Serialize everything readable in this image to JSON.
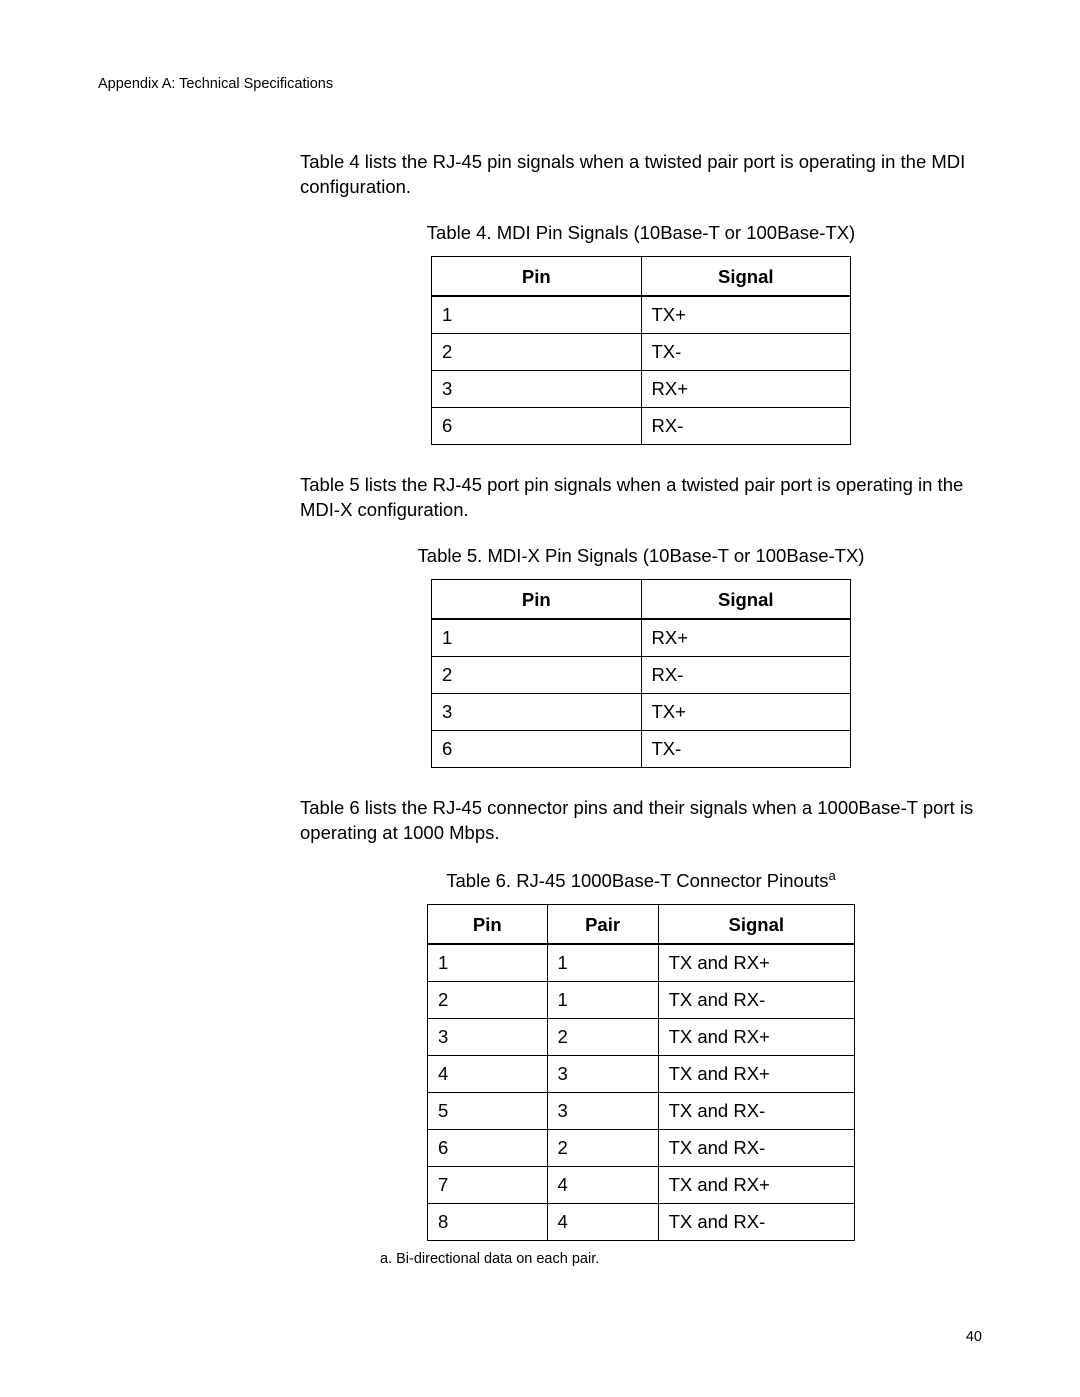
{
  "header": "Appendix A: Technical Specifications",
  "para1": "Table 4 lists the RJ-45 pin signals when a twisted pair port is operating in the MDI configuration.",
  "table4": {
    "caption": "Table 4. MDI Pin Signals (10Base-T or 100Base-TX)",
    "columns": [
      "Pin",
      "Signal"
    ],
    "rows": [
      [
        "1",
        "TX+"
      ],
      [
        "2",
        "TX-"
      ],
      [
        "3",
        "RX+"
      ],
      [
        "6",
        "RX-"
      ]
    ]
  },
  "para2": "Table 5 lists the RJ-45 port pin signals when a twisted pair port is operating in the MDI-X configuration.",
  "table5": {
    "caption": "Table 5. MDI-X Pin Signals (10Base-T or 100Base-TX)",
    "columns": [
      "Pin",
      "Signal"
    ],
    "rows": [
      [
        "1",
        "RX+"
      ],
      [
        "2",
        "RX-"
      ],
      [
        "3",
        "TX+"
      ],
      [
        "6",
        "TX-"
      ]
    ]
  },
  "para3": "Table 6 lists the RJ-45 connector pins and their signals when a 1000Base-T port is operating at 1000 Mbps.",
  "table6": {
    "caption_pre": "Table 6. RJ-45 1000Base-T Connector Pinouts",
    "caption_sup": "a",
    "columns": [
      "Pin",
      "Pair",
      "Signal"
    ],
    "rows": [
      [
        "1",
        "1",
        "TX and RX+"
      ],
      [
        "2",
        "1",
        "TX and RX-"
      ],
      [
        "3",
        "2",
        "TX and RX+"
      ],
      [
        "4",
        "3",
        "TX and RX+"
      ],
      [
        "5",
        "3",
        "TX and RX-"
      ],
      [
        "6",
        "2",
        "TX and RX-"
      ],
      [
        "7",
        "4",
        "TX and RX+"
      ],
      [
        "8",
        "4",
        "TX and RX-"
      ]
    ]
  },
  "footnote": "a.  Bi-directional data on each pair.",
  "page_number": "40"
}
